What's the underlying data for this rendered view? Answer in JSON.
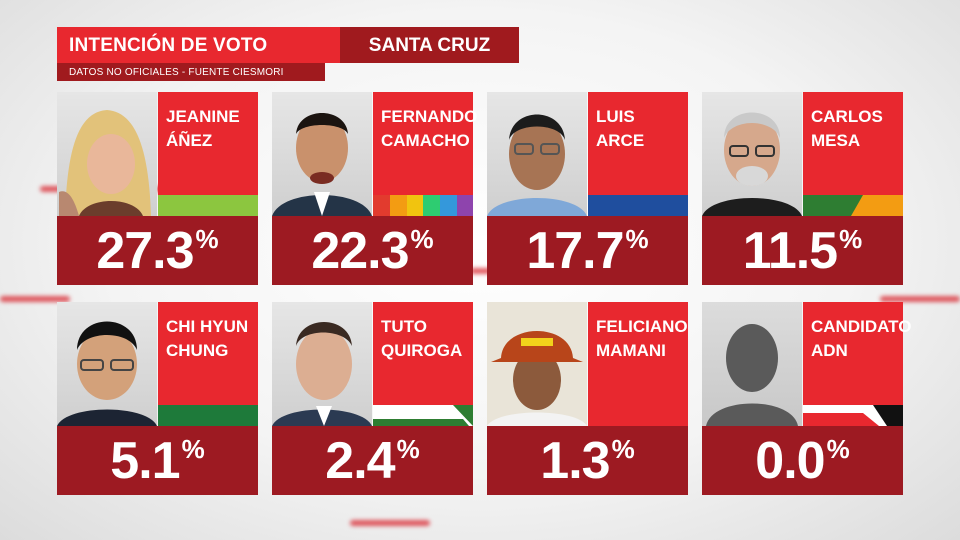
{
  "header": {
    "title": "INTENCIÓN DE VOTO",
    "region": "SANTA CRUZ",
    "subtitle": "DATOS NO OFICIALES - FUENTE CIESMORI"
  },
  "candidates": [
    {
      "name_line1": "JEANINE",
      "name_line2": "ÁÑEZ",
      "value": "27.3",
      "pct": "%",
      "party_colors": [
        "#8cc63f"
      ]
    },
    {
      "name_line1": "FERNANDO",
      "name_line2": "CAMACHO",
      "value": "22.3",
      "pct": "%",
      "party_colors": [
        "#e23b2e",
        "#f39c12",
        "#f1c40f",
        "#2ecc71",
        "#3498db",
        "#8e44ad"
      ]
    },
    {
      "name_line1": "LUIS",
      "name_line2": "ARCE",
      "value": "17.7",
      "pct": "%",
      "party_colors": [
        "#1f4e9e"
      ]
    },
    {
      "name_line1": "CARLOS",
      "name_line2": "MESA",
      "value": "11.5",
      "pct": "%",
      "party_colors": [
        "#2e7d32",
        "#f39c12"
      ]
    },
    {
      "name_line1": "CHI HYUN",
      "name_line2": "CHUNG",
      "value": "5.1",
      "pct": "%",
      "party_colors": [
        "#1e7a3a"
      ]
    },
    {
      "name_line1": "TUTO",
      "name_line2": "QUIROGA",
      "value": "2.4",
      "pct": "%",
      "party_colors": [
        "#ffffff",
        "#2e7d32"
      ]
    },
    {
      "name_line1": "FELICIANO",
      "name_line2": "MAMANI",
      "value": "1.3",
      "pct": "%",
      "party_colors": [
        "#e8282f"
      ]
    },
    {
      "name_line1": "CANDIDATO",
      "name_line2": "ADN",
      "value": "0.0",
      "pct": "%",
      "party_colors": [
        "#e8282f",
        "#ffffff",
        "#111111"
      ]
    }
  ],
  "colors": {
    "accent_red": "#e8282f",
    "dark_red": "#9d1a22"
  }
}
